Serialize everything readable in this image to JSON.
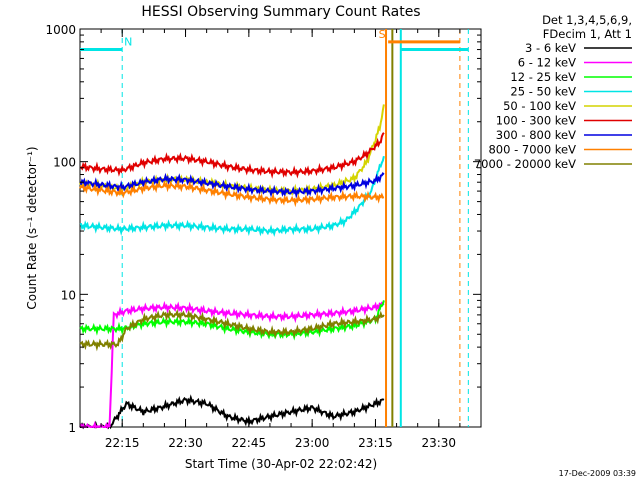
{
  "chart_data": {
    "type": "line",
    "title": "HESSI Observing Summary Count Rates",
    "xlabel": "Start Time (30-Apr-02 22:02:42)",
    "ylabel": "Count Rate (s⁻¹ detector⁻¹)",
    "y_scale": "log",
    "ylim": [
      1,
      1000
    ],
    "xlim": [
      "22:05",
      "23:40"
    ],
    "grid": false,
    "legend_position": "right",
    "legend_header": [
      "Det 1,3,4,5,6,9,",
      "FDecim 1, Att 1"
    ],
    "x_ticks": [
      "22:15",
      "22:30",
      "22:45",
      "23:00",
      "23:15",
      "23:30"
    ],
    "y_ticks": [
      "1",
      "10",
      "100",
      "1000"
    ],
    "timestamp": "17-Dec-2009 03:39",
    "series": [
      {
        "name": "3 - 6 keV",
        "color": "#000000",
        "x": [
          "22:05",
          "22:12",
          "22:16",
          "22:20",
          "22:24",
          "22:30",
          "22:35",
          "22:40",
          "22:45",
          "22:50",
          "22:55",
          "23:00",
          "23:05",
          "23:10",
          "23:15",
          "23:17"
        ],
        "y": [
          1,
          1,
          1.5,
          1.3,
          1.4,
          1.6,
          1.5,
          1.2,
          1.1,
          1.2,
          1.3,
          1.4,
          1.2,
          1.3,
          1.5,
          1.6
        ]
      },
      {
        "name": "6 - 12 keV",
        "color": "#ff00ff",
        "x": [
          "22:05",
          "22:12",
          "22:13",
          "22:16",
          "22:20",
          "22:25",
          "22:30",
          "22:35",
          "22:40",
          "22:45",
          "22:50",
          "22:55",
          "23:00",
          "23:05",
          "23:10",
          "23:15",
          "23:17"
        ],
        "y": [
          1,
          1,
          7,
          7.5,
          7.8,
          8,
          7.9,
          7.5,
          7.2,
          7,
          6.8,
          6.8,
          7,
          7.2,
          7.5,
          8,
          8.5
        ]
      },
      {
        "name": "12 - 25 keV",
        "color": "#00ff00",
        "x": [
          "22:05",
          "22:10",
          "22:15",
          "22:20",
          "22:25",
          "22:30",
          "22:35",
          "22:40",
          "22:45",
          "22:50",
          "22:55",
          "23:00",
          "23:05",
          "23:10",
          "23:15",
          "23:17"
        ],
        "y": [
          5.5,
          5.5,
          5.5,
          6,
          6.2,
          6.2,
          6,
          5.5,
          5.2,
          5,
          5,
          5.2,
          5.5,
          5.8,
          6.5,
          9
        ]
      },
      {
        "name": "25 - 50 keV",
        "color": "#00e5e5",
        "x": [
          "22:05",
          "22:10",
          "22:15",
          "22:20",
          "22:25",
          "22:30",
          "22:35",
          "22:40",
          "22:45",
          "22:50",
          "22:55",
          "23:00",
          "23:05",
          "23:08",
          "23:11",
          "23:14",
          "23:17"
        ],
        "y": [
          33,
          32,
          31,
          32,
          33,
          33,
          32,
          31,
          31,
          30,
          31,
          31,
          33,
          36,
          45,
          60,
          110
        ]
      },
      {
        "name": "50 - 100 keV",
        "color": "#d4d400",
        "x": [
          "22:05",
          "22:10",
          "22:15",
          "22:20",
          "22:25",
          "22:30",
          "22:35",
          "22:40",
          "22:45",
          "22:50",
          "22:55",
          "23:00",
          "23:05",
          "23:10",
          "23:13",
          "23:16",
          "23:17"
        ],
        "y": [
          68,
          66,
          62,
          70,
          73,
          73,
          70,
          66,
          63,
          61,
          60,
          62,
          66,
          75,
          100,
          180,
          270
        ]
      },
      {
        "name": "100 - 300 keV",
        "color": "#e00000",
        "x": [
          "22:05",
          "22:10",
          "22:15",
          "22:20",
          "22:25",
          "22:30",
          "22:35",
          "22:40",
          "22:45",
          "22:50",
          "22:55",
          "23:00",
          "23:05",
          "23:10",
          "23:13",
          "23:16",
          "23:17"
        ],
        "y": [
          92,
          88,
          86,
          98,
          105,
          106,
          100,
          92,
          87,
          84,
          83,
          85,
          90,
          100,
          115,
          140,
          165
        ]
      },
      {
        "name": "300 - 800 keV",
        "color": "#0000e0",
        "x": [
          "22:05",
          "22:10",
          "22:15",
          "22:20",
          "22:25",
          "22:30",
          "22:35",
          "22:40",
          "22:45",
          "22:50",
          "22:55",
          "23:00",
          "23:05",
          "23:10",
          "23:15",
          "23:17"
        ],
        "y": [
          70,
          67,
          64,
          70,
          74,
          73,
          69,
          65,
          62,
          60,
          59,
          60,
          63,
          66,
          72,
          80
        ]
      },
      {
        "name": "800 - 7000 keV",
        "color": "#ff8000",
        "x": [
          "22:05",
          "22:10",
          "22:15",
          "22:20",
          "22:25",
          "22:30",
          "22:35",
          "22:40",
          "22:45",
          "22:50",
          "22:55",
          "23:00",
          "23:05",
          "23:10",
          "23:15",
          "23:17"
        ],
        "y": [
          64,
          61,
          58,
          63,
          66,
          65,
          61,
          57,
          54,
          52,
          51,
          52,
          54,
          55,
          54,
          54
        ]
      },
      {
        "name": "7000 - 20000 keV",
        "color": "#808000",
        "x": [
          "22:05",
          "22:10",
          "22:14",
          "22:16",
          "22:20",
          "22:25",
          "22:30",
          "22:35",
          "22:40",
          "22:45",
          "22:50",
          "22:55",
          "23:00",
          "23:05",
          "23:10",
          "23:15",
          "23:17"
        ],
        "y": [
          4.2,
          4.2,
          4.2,
          5.5,
          6.5,
          7,
          7,
          6.5,
          6,
          5.5,
          5.2,
          5.2,
          5.5,
          6,
          6.2,
          6.5,
          7
        ]
      }
    ],
    "annotations": [
      {
        "label": "N",
        "type": "night",
        "color": "#00e5e5",
        "level": 700,
        "from": "22:05",
        "to": "22:15"
      },
      {
        "label": "",
        "type": "night",
        "color": "#00e5e5",
        "level": 700,
        "from": "23:21",
        "to": "23:37"
      },
      {
        "label": "S",
        "type": "saa",
        "color": "#ff8000",
        "level": 800,
        "from": "23:18",
        "to": "23:35"
      }
    ],
    "vertical_markers": [
      {
        "time": "22:15",
        "style": "dashed",
        "color": "#00e5e5"
      },
      {
        "time": "23:17.5",
        "style": "solid",
        "color": "#ff8000"
      },
      {
        "time": "23:19",
        "style": "solid",
        "color": "#808000"
      },
      {
        "time": "23:21",
        "style": "solid",
        "color": "#00e5e5"
      },
      {
        "time": "23:35",
        "style": "dashed",
        "color": "#ff8000"
      },
      {
        "time": "23:37",
        "style": "dashed",
        "color": "#00e5e5"
      }
    ]
  }
}
